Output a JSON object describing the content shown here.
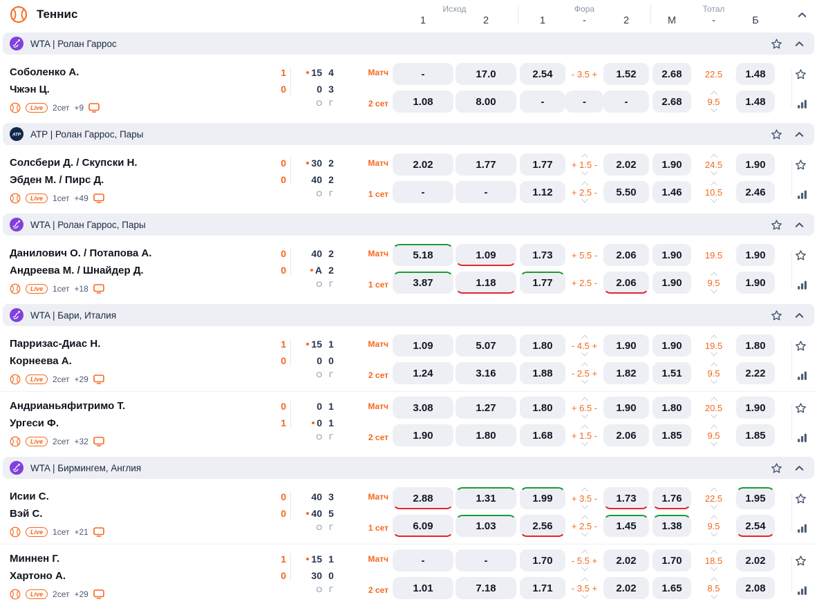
{
  "header": {
    "title": "Теннис",
    "groups": [
      {
        "label": "Исход",
        "cols": [
          "1",
          "2"
        ]
      },
      {
        "label": "Фора",
        "cols": [
          "1",
          "-",
          "2"
        ]
      },
      {
        "label": "Тотал",
        "cols": [
          "М",
          "-",
          "Б"
        ]
      }
    ]
  },
  "score_columns": [
    "О",
    "Г"
  ],
  "colors": {
    "accent_orange": "#f5671c",
    "trend_up_green": "#179b38",
    "trend_down_red": "#e8222e",
    "button_bg": "#edeff4",
    "section_bg": "#edeff5",
    "slate_icon": "#40506a",
    "wta_purple": "#8040dd",
    "atp_navy": "#12284b"
  },
  "sections": [
    {
      "league_icon": "wta",
      "title": "WTA | Ролан Гаррос",
      "matches": [
        {
          "players": [
            "Соболенко А.",
            "Чжэн Ц."
          ],
          "sets": [
            "1",
            "0"
          ],
          "points": [
            "15",
            "0"
          ],
          "games": [
            "4",
            "3"
          ],
          "serving": 0,
          "markets": [
            "Матч",
            "2 сет"
          ],
          "meta": {
            "live": "Live",
            "set": "2сет",
            "more": "+9"
          },
          "rows": [
            {
              "outcome": [
                {
                  "v": "-"
                },
                {
                  "v": "17.0"
                }
              ],
              "handicap": [
                {
                  "v": "2.54"
                },
                {
                  "line": "- 3.5 +"
                },
                {
                  "v": "1.52"
                }
              ],
              "total": [
                {
                  "v": "2.68"
                },
                {
                  "line": "22.5"
                },
                {
                  "v": "1.48"
                }
              ]
            },
            {
              "outcome": [
                {
                  "v": "1.08"
                },
                {
                  "v": "8.00"
                }
              ],
              "handicap": [
                {
                  "v": "-"
                },
                {
                  "v": "-"
                },
                {
                  "v": "-"
                }
              ],
              "total": [
                {
                  "v": "2.68"
                },
                {
                  "line": "9.5",
                  "ch": true
                },
                {
                  "v": "1.48"
                }
              ]
            }
          ]
        }
      ]
    },
    {
      "league_icon": "atp",
      "title": "ATP | Ролан Гаррос, Пары",
      "matches": [
        {
          "players": [
            "Солсбери Д. / Скупски Н.",
            "Эбден М. / Пирс Д."
          ],
          "sets": [
            "0",
            "0"
          ],
          "points": [
            "30",
            "40"
          ],
          "games": [
            "2",
            "2"
          ],
          "serving": 0,
          "markets": [
            "Матч",
            "1 сет"
          ],
          "meta": {
            "live": "Live",
            "set": "1сет",
            "more": "+49"
          },
          "rows": [
            {
              "outcome": [
                {
                  "v": "2.02"
                },
                {
                  "v": "1.77"
                }
              ],
              "handicap": [
                {
                  "v": "1.77"
                },
                {
                  "line": "+ 1.5 -",
                  "ch": true
                },
                {
                  "v": "2.02"
                }
              ],
              "total": [
                {
                  "v": "1.90"
                },
                {
                  "line": "24.5",
                  "ch": true
                },
                {
                  "v": "1.90"
                }
              ]
            },
            {
              "outcome": [
                {
                  "v": "-"
                },
                {
                  "v": "-"
                }
              ],
              "handicap": [
                {
                  "v": "1.12"
                },
                {
                  "line": "+ 2.5 -",
                  "ch": true
                },
                {
                  "v": "5.50"
                }
              ],
              "total": [
                {
                  "v": "1.46"
                },
                {
                  "line": "10.5",
                  "ch": true
                },
                {
                  "v": "2.46"
                }
              ]
            }
          ]
        }
      ]
    },
    {
      "league_icon": "wta",
      "title": "WTA | Ролан Гаррос, Пары",
      "matches": [
        {
          "players": [
            "Данилович О. / Потапова А.",
            "Андреева М. / Шнайдер Д."
          ],
          "sets": [
            "0",
            "0"
          ],
          "points": [
            "40",
            "А"
          ],
          "games": [
            "2",
            "2"
          ],
          "serving": 1,
          "markets": [
            "Матч",
            "1 сет"
          ],
          "meta": {
            "live": "Live",
            "set": "1сет",
            "more": "+18"
          },
          "rows": [
            {
              "outcome": [
                {
                  "v": "5.18",
                  "trend": "up"
                },
                {
                  "v": "1.09",
                  "trend": "down"
                }
              ],
              "handicap": [
                {
                  "v": "1.73"
                },
                {
                  "line": "+ 5.5 -"
                },
                {
                  "v": "2.06"
                }
              ],
              "total": [
                {
                  "v": "1.90"
                },
                {
                  "line": "19.5"
                },
                {
                  "v": "1.90"
                }
              ]
            },
            {
              "outcome": [
                {
                  "v": "3.87",
                  "trend": "up"
                },
                {
                  "v": "1.18",
                  "trend": "down"
                }
              ],
              "handicap": [
                {
                  "v": "1.77",
                  "trend": "up"
                },
                {
                  "line": "+ 2.5 -"
                },
                {
                  "v": "2.06",
                  "trend": "down"
                }
              ],
              "total": [
                {
                  "v": "1.90"
                },
                {
                  "line": "9.5",
                  "ch": true
                },
                {
                  "v": "1.90"
                }
              ]
            }
          ]
        }
      ]
    },
    {
      "league_icon": "wta",
      "title": "WTA | Бари, Италия",
      "matches": [
        {
          "players": [
            "Парризас-Диас Н.",
            "Корнеева А."
          ],
          "sets": [
            "1",
            "0"
          ],
          "points": [
            "15",
            "0"
          ],
          "games": [
            "1",
            "0"
          ],
          "serving": 0,
          "markets": [
            "Матч",
            "2 сет"
          ],
          "meta": {
            "live": "Live",
            "set": "2сет",
            "more": "+29"
          },
          "rows": [
            {
              "outcome": [
                {
                  "v": "1.09"
                },
                {
                  "v": "5.07"
                }
              ],
              "handicap": [
                {
                  "v": "1.80"
                },
                {
                  "line": "- 4.5 +",
                  "ch": true
                },
                {
                  "v": "1.90"
                }
              ],
              "total": [
                {
                  "v": "1.90"
                },
                {
                  "line": "19.5",
                  "ch": true
                },
                {
                  "v": "1.80"
                }
              ]
            },
            {
              "outcome": [
                {
                  "v": "1.24"
                },
                {
                  "v": "3.16"
                }
              ],
              "handicap": [
                {
                  "v": "1.88"
                },
                {
                  "line": "- 2.5 +",
                  "ch": true
                },
                {
                  "v": "1.82"
                }
              ],
              "total": [
                {
                  "v": "1.51"
                },
                {
                  "line": "9.5",
                  "ch": true
                },
                {
                  "v": "2.22"
                }
              ]
            }
          ]
        },
        {
          "players": [
            "Андрианьяфитримо Т.",
            "Ургеси Ф."
          ],
          "sets": [
            "0",
            "1"
          ],
          "points": [
            "0",
            "0"
          ],
          "games": [
            "1",
            "1"
          ],
          "serving": 1,
          "markets": [
            "Матч",
            "2 сет"
          ],
          "meta": {
            "live": "Live",
            "set": "2сет",
            "more": "+32"
          },
          "rows": [
            {
              "outcome": [
                {
                  "v": "3.08"
                },
                {
                  "v": "1.27"
                }
              ],
              "handicap": [
                {
                  "v": "1.80"
                },
                {
                  "line": "+ 6.5 -",
                  "ch": true
                },
                {
                  "v": "1.90"
                }
              ],
              "total": [
                {
                  "v": "1.80"
                },
                {
                  "line": "20.5",
                  "ch": true
                },
                {
                  "v": "1.90"
                }
              ]
            },
            {
              "outcome": [
                {
                  "v": "1.90"
                },
                {
                  "v": "1.80"
                }
              ],
              "handicap": [
                {
                  "v": "1.68"
                },
                {
                  "line": "+ 1.5 -",
                  "ch": true
                },
                {
                  "v": "2.06"
                }
              ],
              "total": [
                {
                  "v": "1.85"
                },
                {
                  "line": "9.5",
                  "ch": true
                },
                {
                  "v": "1.85"
                }
              ]
            }
          ]
        }
      ]
    },
    {
      "league_icon": "wta",
      "title": "WTA | Бирмингем, Англия",
      "matches": [
        {
          "players": [
            "Исии С.",
            "Вэй С."
          ],
          "sets": [
            "0",
            "0"
          ],
          "points": [
            "40",
            "40"
          ],
          "games": [
            "3",
            "5"
          ],
          "serving": 1,
          "markets": [
            "Матч",
            "1 сет"
          ],
          "meta": {
            "live": "Live",
            "set": "1сет",
            "more": "+21"
          },
          "rows": [
            {
              "outcome": [
                {
                  "v": "2.88",
                  "trend": "down"
                },
                {
                  "v": "1.31",
                  "trend": "up"
                }
              ],
              "handicap": [
                {
                  "v": "1.99",
                  "trend": "up"
                },
                {
                  "line": "+ 3.5 -",
                  "ch": true
                },
                {
                  "v": "1.73",
                  "trend": "down"
                }
              ],
              "total": [
                {
                  "v": "1.76",
                  "trend": "down"
                },
                {
                  "line": "22.5",
                  "ch": true
                },
                {
                  "v": "1.95",
                  "trend": "up"
                }
              ]
            },
            {
              "outcome": [
                {
                  "v": "6.09",
                  "trend": "down"
                },
                {
                  "v": "1.03",
                  "trend": "up"
                }
              ],
              "handicap": [
                {
                  "v": "2.56",
                  "trend": "down"
                },
                {
                  "line": "+ 2.5 -",
                  "ch": true
                },
                {
                  "v": "1.45",
                  "trend": "up"
                }
              ],
              "total": [
                {
                  "v": "1.38",
                  "trend": "up"
                },
                {
                  "line": "9.5",
                  "ch": true
                },
                {
                  "v": "2.54",
                  "trend": "down"
                }
              ]
            }
          ]
        },
        {
          "players": [
            "Миннен Г.",
            "Хартоно А."
          ],
          "sets": [
            "1",
            "0"
          ],
          "points": [
            "15",
            "30"
          ],
          "games": [
            "1",
            "0"
          ],
          "serving": 0,
          "markets": [
            "Матч",
            "2 сет"
          ],
          "meta": {
            "live": "Live",
            "set": "2сет",
            "more": "+29"
          },
          "rows": [
            {
              "outcome": [
                {
                  "v": "-"
                },
                {
                  "v": "-"
                }
              ],
              "handicap": [
                {
                  "v": "1.70"
                },
                {
                  "line": "- 5.5 +",
                  "ch": true
                },
                {
                  "v": "2.02"
                }
              ],
              "total": [
                {
                  "v": "1.70"
                },
                {
                  "line": "18.5",
                  "ch": true
                },
                {
                  "v": "2.02"
                }
              ]
            },
            {
              "outcome": [
                {
                  "v": "1.01"
                },
                {
                  "v": "7.18"
                }
              ],
              "handicap": [
                {
                  "v": "1.71"
                },
                {
                  "line": "- 3.5 +",
                  "ch": true
                },
                {
                  "v": "2.02"
                }
              ],
              "total": [
                {
                  "v": "1.65"
                },
                {
                  "line": "8.5",
                  "ch": true
                },
                {
                  "v": "2.08"
                }
              ]
            }
          ]
        }
      ]
    }
  ]
}
